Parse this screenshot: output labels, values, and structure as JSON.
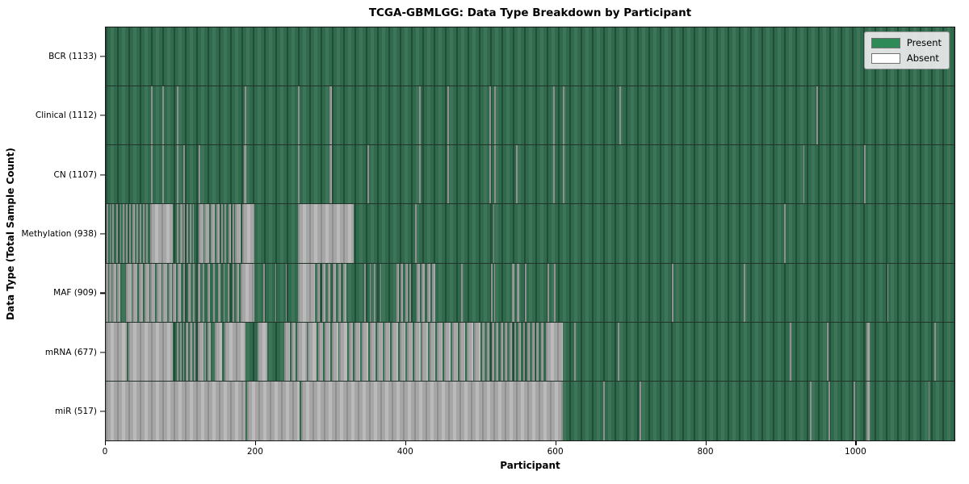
{
  "title": "TCGA-GBMLGG: Data Type Breakdown by Participant",
  "legend": {
    "present_label": "Present",
    "absent_label": "Absent",
    "present_color": "#2e8b57",
    "absent_color": "#ffffff"
  },
  "colors": {
    "present_bar": "#2f6a4c",
    "absent_bar": "#a6a6a6",
    "figure_background": "#ffffff"
  },
  "chart_data": {
    "type": "heatmap",
    "title": "TCGA-GBMLGG: Data Type Breakdown by Participant",
    "xlabel": "Participant",
    "ylabel": "Data Type (Total Sample Count)",
    "x_range": [
      0,
      1133
    ],
    "x_ticks": [
      0,
      200,
      400,
      600,
      800,
      1000
    ],
    "grid": false,
    "legend_position": "upper right",
    "legend": [
      {
        "label": "Present",
        "color": "#2e8b57"
      },
      {
        "label": "Absent",
        "color": "#ffffff"
      }
    ],
    "rows": [
      {
        "name": "bcr",
        "label": "BCR (1133)",
        "total": 1133,
        "absent_segments": []
      },
      {
        "name": "clinical",
        "label": "Clinical (1112)",
        "total": 1112,
        "absent_segments": [
          [
            60,
            62
          ],
          [
            76,
            78
          ],
          [
            95,
            97
          ],
          [
            185,
            188
          ],
          [
            257,
            259
          ],
          [
            299,
            302
          ],
          [
            418,
            420
          ],
          [
            456,
            458
          ],
          [
            512,
            514
          ],
          [
            519,
            521
          ],
          [
            597,
            599
          ],
          [
            610,
            612
          ],
          [
            686,
            688
          ],
          [
            949,
            951
          ]
        ]
      },
      {
        "name": "cn",
        "label": "CN (1107)",
        "total": 1107,
        "absent_segments": [
          [
            60,
            62
          ],
          [
            76,
            78
          ],
          [
            95,
            97
          ],
          [
            104,
            106
          ],
          [
            124,
            126
          ],
          [
            184,
            188
          ],
          [
            257,
            259
          ],
          [
            299,
            302
          ],
          [
            349,
            351
          ],
          [
            418,
            420
          ],
          [
            456,
            458
          ],
          [
            512,
            514
          ],
          [
            519,
            521
          ],
          [
            548,
            550
          ],
          [
            597,
            599
          ],
          [
            610,
            612
          ],
          [
            931,
            933
          ],
          [
            1012,
            1014
          ]
        ]
      },
      {
        "name": "methylation",
        "label": "Methylation (938)",
        "total": 938,
        "absent_segments": [
          [
            1,
            3
          ],
          [
            5,
            7
          ],
          [
            9,
            11
          ],
          [
            14,
            16
          ],
          [
            19,
            21
          ],
          [
            23,
            25
          ],
          [
            27,
            29
          ],
          [
            31,
            33
          ],
          [
            36,
            39
          ],
          [
            41,
            43
          ],
          [
            45,
            47
          ],
          [
            50,
            52
          ],
          [
            54,
            56
          ],
          [
            59,
            90
          ],
          [
            95,
            97
          ],
          [
            99,
            102
          ],
          [
            104,
            106
          ],
          [
            108,
            110
          ],
          [
            112,
            114
          ],
          [
            116,
            118
          ],
          [
            124,
            130
          ],
          [
            132,
            138
          ],
          [
            140,
            146
          ],
          [
            148,
            152
          ],
          [
            154,
            156
          ],
          [
            158,
            161
          ],
          [
            164,
            167
          ],
          [
            169,
            171
          ],
          [
            173,
            180
          ],
          [
            182,
            198
          ],
          [
            257,
            331
          ],
          [
            413,
            415
          ],
          [
            517,
            519
          ],
          [
            906,
            908
          ]
        ]
      },
      {
        "name": "maf",
        "label": "MAF (909)",
        "total": 909,
        "absent_segments": [
          [
            0,
            3
          ],
          [
            4,
            8
          ],
          [
            9,
            14
          ],
          [
            15,
            19
          ],
          [
            27,
            34
          ],
          [
            36,
            42
          ],
          [
            44,
            50
          ],
          [
            52,
            58
          ],
          [
            59,
            66
          ],
          [
            68,
            74
          ],
          [
            76,
            82
          ],
          [
            84,
            88
          ],
          [
            90,
            94
          ],
          [
            96,
            100
          ],
          [
            103,
            106
          ],
          [
            110,
            113
          ],
          [
            116,
            119
          ],
          [
            123,
            126
          ],
          [
            129,
            132
          ],
          [
            136,
            139
          ],
          [
            143,
            146
          ],
          [
            150,
            153
          ],
          [
            157,
            159
          ],
          [
            163,
            165
          ],
          [
            169,
            171
          ],
          [
            175,
            178
          ],
          [
            180,
            198
          ],
          [
            210,
            212
          ],
          [
            226,
            228
          ],
          [
            240,
            242
          ],
          [
            257,
            279
          ],
          [
            282,
            286
          ],
          [
            289,
            293
          ],
          [
            296,
            300
          ],
          [
            303,
            307
          ],
          [
            310,
            314
          ],
          [
            317,
            321
          ],
          [
            345,
            347
          ],
          [
            352,
            354
          ],
          [
            358,
            360
          ],
          [
            366,
            368
          ],
          [
            388,
            391
          ],
          [
            394,
            397
          ],
          [
            400,
            403
          ],
          [
            405,
            407
          ],
          [
            415,
            419
          ],
          [
            422,
            426
          ],
          [
            429,
            433
          ],
          [
            436,
            440
          ],
          [
            474,
            476
          ],
          [
            514,
            516
          ],
          [
            518,
            520
          ],
          [
            542,
            545
          ],
          [
            549,
            552
          ],
          [
            560,
            562
          ],
          [
            590,
            592
          ],
          [
            598,
            600
          ],
          [
            756,
            758
          ],
          [
            852,
            854
          ],
          [
            1043,
            1045
          ]
        ]
      },
      {
        "name": "mrna",
        "label": "mRNA (677)",
        "total": 677,
        "absent_segments": [
          [
            0,
            28
          ],
          [
            30,
            90
          ],
          [
            95,
            97
          ],
          [
            99,
            101
          ],
          [
            103,
            105
          ],
          [
            107,
            110
          ],
          [
            112,
            115
          ],
          [
            117,
            120
          ],
          [
            123,
            130
          ],
          [
            132,
            134
          ],
          [
            136,
            140
          ],
          [
            145,
            155
          ],
          [
            158,
            187
          ],
          [
            203,
            216
          ],
          [
            238,
            246
          ],
          [
            248,
            253
          ],
          [
            255,
            268
          ],
          [
            270,
            281
          ],
          [
            283,
            290
          ],
          [
            292,
            300
          ],
          [
            302,
            310
          ],
          [
            312,
            322
          ],
          [
            324,
            330
          ],
          [
            332,
            340
          ],
          [
            342,
            350
          ],
          [
            352,
            360
          ],
          [
            362,
            370
          ],
          [
            372,
            380
          ],
          [
            382,
            390
          ],
          [
            392,
            400
          ],
          [
            402,
            410
          ],
          [
            412,
            420
          ],
          [
            422,
            430
          ],
          [
            432,
            440
          ],
          [
            442,
            450
          ],
          [
            452,
            460
          ],
          [
            462,
            470
          ],
          [
            472,
            480
          ],
          [
            482,
            490
          ],
          [
            492,
            500
          ],
          [
            502,
            506
          ],
          [
            509,
            512
          ],
          [
            515,
            518
          ],
          [
            521,
            524
          ],
          [
            527,
            530
          ],
          [
            533,
            536
          ],
          [
            539,
            542
          ],
          [
            545,
            548
          ],
          [
            551,
            554
          ],
          [
            557,
            560
          ],
          [
            563,
            566
          ],
          [
            569,
            572
          ],
          [
            575,
            578
          ],
          [
            581,
            584
          ],
          [
            587,
            610
          ],
          [
            625,
            627
          ],
          [
            684,
            686
          ],
          [
            913,
            915
          ],
          [
            963,
            965
          ],
          [
            1016,
            1020
          ],
          [
            1106,
            1108
          ]
        ]
      },
      {
        "name": "mir",
        "label": "miR (517)",
        "total": 517,
        "absent_segments": [
          [
            0,
            187
          ],
          [
            189,
            259
          ],
          [
            261,
            610
          ],
          [
            664,
            666
          ],
          [
            713,
            715
          ],
          [
            940,
            942
          ],
          [
            965,
            967
          ],
          [
            998,
            1000
          ],
          [
            1015,
            1020
          ],
          [
            1098,
            1100
          ]
        ]
      }
    ]
  }
}
